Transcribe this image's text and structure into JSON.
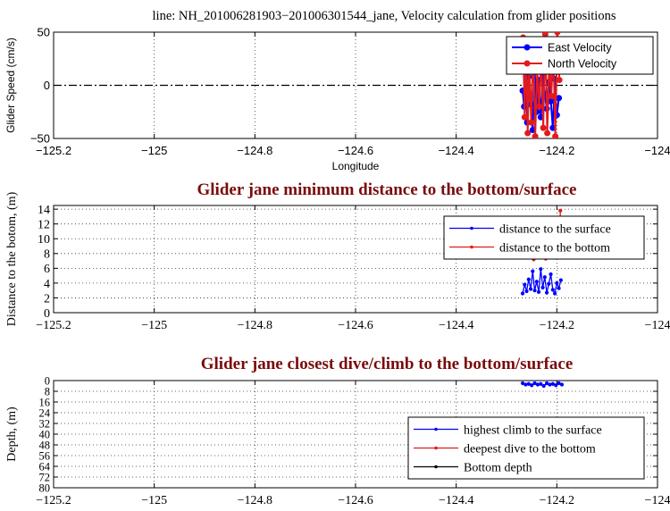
{
  "figure": {
    "top_title": "line: NH_201006281903−201006301544_jane, Velocity calculation from glider positions",
    "colors": {
      "blue": "#0000ff",
      "red": "#e31a1c",
      "dark_red": "#7a0b0b",
      "black": "#000000"
    }
  },
  "chart_data": [
    {
      "type": "line",
      "title": "",
      "xlabel": "Longitude",
      "ylabel": "Glider Speed (cm/s)",
      "xlim": [
        -125.2,
        -124.0
      ],
      "ylim": [
        -50,
        50
      ],
      "xticks": [
        -125.2,
        -125,
        -124.8,
        -124.6,
        -124.4,
        -124.2,
        -124
      ],
      "xtick_labels": [
        "−125.2",
        "−125",
        "−124.8",
        "−124.6",
        "−124.4",
        "−124.2",
        "−124"
      ],
      "yticks": [
        -50,
        0,
        50
      ],
      "ytick_labels": [
        "−50",
        "0",
        "50"
      ],
      "grid": true,
      "zero_line": true,
      "legend": {
        "placement": "top-right",
        "entries": [
          "East Velocity",
          "North Velocity"
        ]
      },
      "series": [
        {
          "name": "East Velocity",
          "color": "#0000ff",
          "x": [
            -124.268,
            -124.265,
            -124.262,
            -124.259,
            -124.256,
            -124.252,
            -124.248,
            -124.244,
            -124.24,
            -124.236,
            -124.232,
            -124.228,
            -124.224,
            -124.22,
            -124.216,
            -124.212,
            -124.208,
            -124.204,
            -124.2,
            -124.196
          ],
          "y": [
            -5,
            -20,
            12,
            -35,
            8,
            -18,
            -42,
            15,
            -25,
            5,
            -30,
            10,
            -8,
            -22,
            3,
            -15,
            -40,
            6,
            -28,
            -12
          ]
        },
        {
          "name": "North Velocity",
          "color": "#e31a1c",
          "x": [
            -124.267,
            -124.264,
            -124.261,
            -124.258,
            -124.255,
            -124.251,
            -124.247,
            -124.243,
            -124.239,
            -124.235,
            -124.231,
            -124.227,
            -124.223,
            -124.219,
            -124.215,
            -124.211,
            -124.207,
            -124.203,
            -124.199,
            -124.195
          ],
          "y": [
            45,
            -30,
            38,
            -45,
            20,
            -35,
            40,
            -48,
            15,
            -20,
            30,
            -40,
            48,
            -45,
            25,
            -10,
            35,
            -48,
            50,
            5
          ]
        }
      ]
    },
    {
      "type": "line",
      "title": "Glider jane minimum distance to the bottom/surface",
      "xlabel": "",
      "ylabel": "Distance to the botom, (m)",
      "xlim": [
        -125.2,
        -124.0
      ],
      "ylim": [
        0,
        14.5
      ],
      "xticks": [
        -125.2,
        -125,
        -124.8,
        -124.6,
        -124.4,
        -124.2,
        -124
      ],
      "xtick_labels": [
        "−125.2",
        "−125",
        "−124.8",
        "−124.6",
        "−124.4",
        "−124.2",
        "−124"
      ],
      "yticks": [
        0,
        2,
        4,
        6,
        8,
        10,
        12,
        14
      ],
      "ytick_labels": [
        "0",
        "2",
        "4",
        "6",
        "8",
        "10",
        "12",
        "14"
      ],
      "grid": true,
      "legend": {
        "placement": "top-right",
        "entries": [
          "distance to the surface",
          "distance to the bottom"
        ]
      },
      "series": [
        {
          "name": "distance to the surface",
          "color": "#0000ff",
          "x": [
            -124.268,
            -124.264,
            -124.26,
            -124.256,
            -124.252,
            -124.248,
            -124.244,
            -124.24,
            -124.236,
            -124.232,
            -124.228,
            -124.224,
            -124.22,
            -124.216,
            -124.212,
            -124.208,
            -124.204,
            -124.2,
            -124.196,
            -124.192
          ],
          "y": [
            2.6,
            3.8,
            2.9,
            4.5,
            3.2,
            5.6,
            3.0,
            4.2,
            2.8,
            5.9,
            3.4,
            4.8,
            2.7,
            3.9,
            5.2,
            3.1,
            2.6,
            4.0,
            3.3,
            4.4
          ]
        },
        {
          "name": "distance to the bottom",
          "color": "#e31a1c",
          "x": [
            -124.262,
            -124.246,
            -124.232,
            -124.222,
            -124.208,
            -124.196,
            -124.193
          ],
          "y": [
            7.6,
            7.2,
            7.6,
            7.3,
            7.6,
            7.5,
            13.8
          ]
        }
      ]
    },
    {
      "type": "line",
      "title": "Glider jane closest dive/climb to the bottom/surface",
      "xlabel": "",
      "ylabel": "Depth, (m)",
      "xlim": [
        -125.2,
        -124.0
      ],
      "ylim": [
        0,
        80
      ],
      "y_reversed": true,
      "xticks": [
        -125.2,
        -125,
        -124.8,
        -124.6,
        -124.4,
        -124.2,
        -124
      ],
      "xtick_labels": [
        "−125.2",
        "−125",
        "−124.8",
        "−124.6",
        "−124.4",
        "−124.2",
        "−124"
      ],
      "yticks": [
        0,
        8,
        16,
        24,
        32,
        40,
        48,
        56,
        64,
        72,
        80
      ],
      "ytick_labels": [
        "0",
        "8",
        "16",
        "24",
        "32",
        "40",
        "48",
        "56",
        "64",
        "72",
        "80"
      ],
      "grid": true,
      "legend": {
        "placement": "bottom-right",
        "entries": [
          "highest climb to the surface",
          "deepest dive to the bottom",
          "Bottom depth"
        ]
      },
      "series": [
        {
          "name": "highest climb to the surface",
          "color": "#0000ff",
          "x": [
            -124.268,
            -124.262,
            -124.256,
            -124.25,
            -124.244,
            -124.238,
            -124.232,
            -124.226,
            -124.22,
            -124.214,
            -124.208,
            -124.202,
            -124.196,
            -124.19
          ],
          "y": [
            2,
            3,
            2.5,
            3.5,
            2,
            3,
            2.5,
            4,
            2,
            3,
            2.5,
            3.5,
            2,
            3
          ]
        },
        {
          "name": "deepest dive to the bottom",
          "color": "#e31a1c",
          "x": [],
          "y": []
        },
        {
          "name": "Bottom depth",
          "color": "#000000",
          "x": [],
          "y": []
        }
      ]
    }
  ]
}
